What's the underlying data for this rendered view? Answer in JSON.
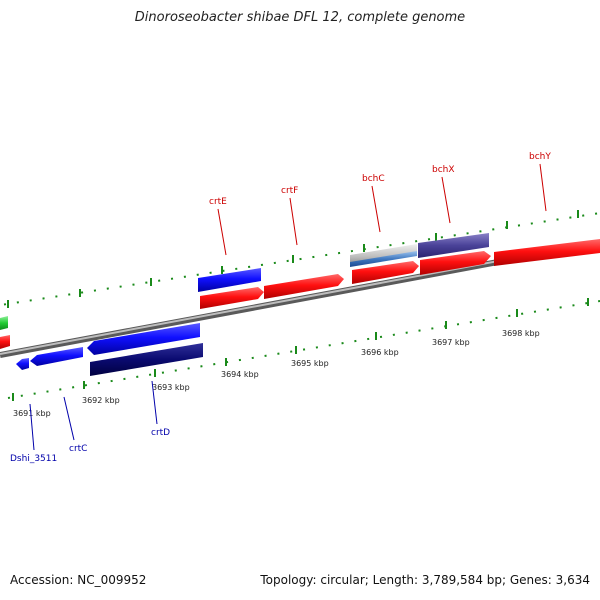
{
  "title": "Dinoroseobacter shibae DFL 12, complete genome",
  "footer": {
    "accession": "Accession: NC_009952",
    "stats": "Topology: circular; Length: 3,789,584 bp; Genes: 3,634"
  },
  "scale_labels": [
    "3691 kbp",
    "3692 kbp",
    "3693 kbp",
    "3694 kbp",
    "3695 kbp",
    "3696 kbp",
    "3697 kbp",
    "3698 kbp"
  ],
  "gene_labels": [
    "Dshi_3511",
    "crtC",
    "crtD",
    "crtE",
    "crtF",
    "bchC",
    "bchX",
    "bchY"
  ],
  "colors": {
    "backbone": "#8a8a8a",
    "forward_cds": "#ff0000",
    "reverse_cds": "#0000ff",
    "dark_blue": "#000070",
    "other": "#2ecc40",
    "forward_label": "#cc0000",
    "reverse_label": "#0000aa",
    "ticks": "#228822"
  }
}
